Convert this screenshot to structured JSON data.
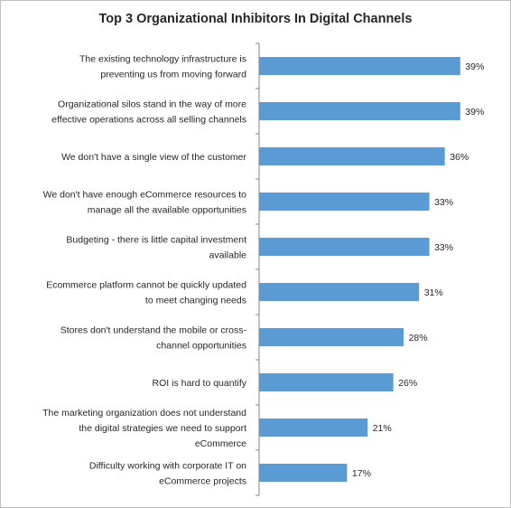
{
  "chart_data": {
    "type": "bar",
    "orientation": "horizontal",
    "title": "Top 3 Organizational Inhibitors In Digital Channels",
    "categories": [
      [
        "The existing technology infrastructure is",
        "preventing us from moving forward"
      ],
      [
        "Organizational silos stand in the way of more",
        "effective operations across all selling channels"
      ],
      [
        "We don't have a single view of the customer"
      ],
      [
        "We don't have enough eCommerce resources to",
        "manage all the available opportunities"
      ],
      [
        "Budgeting - there is little capital investment",
        "available"
      ],
      [
        "Ecommerce platform cannot be quickly updated",
        "to meet changing needs"
      ],
      [
        "Stores don't understand the mobile or cross-",
        "channel opportunities"
      ],
      [
        "ROI is hard to quantify"
      ],
      [
        "The marketing organization does not understand",
        "the digital strategies we need to support",
        "eCommerce"
      ],
      [
        "Difficulty working with corporate IT on",
        "eCommerce projects"
      ]
    ],
    "values": [
      39,
      39,
      36,
      33,
      33,
      31,
      28,
      26,
      21,
      17
    ],
    "value_labels": [
      "39%",
      "39%",
      "36%",
      "33%",
      "33%",
      "31%",
      "28%",
      "26%",
      "21%",
      "17%"
    ],
    "xlim": [
      0,
      40
    ],
    "grid": false,
    "legend": "none",
    "bar_color": "#5b9bd5",
    "axis_color": "#868686"
  }
}
